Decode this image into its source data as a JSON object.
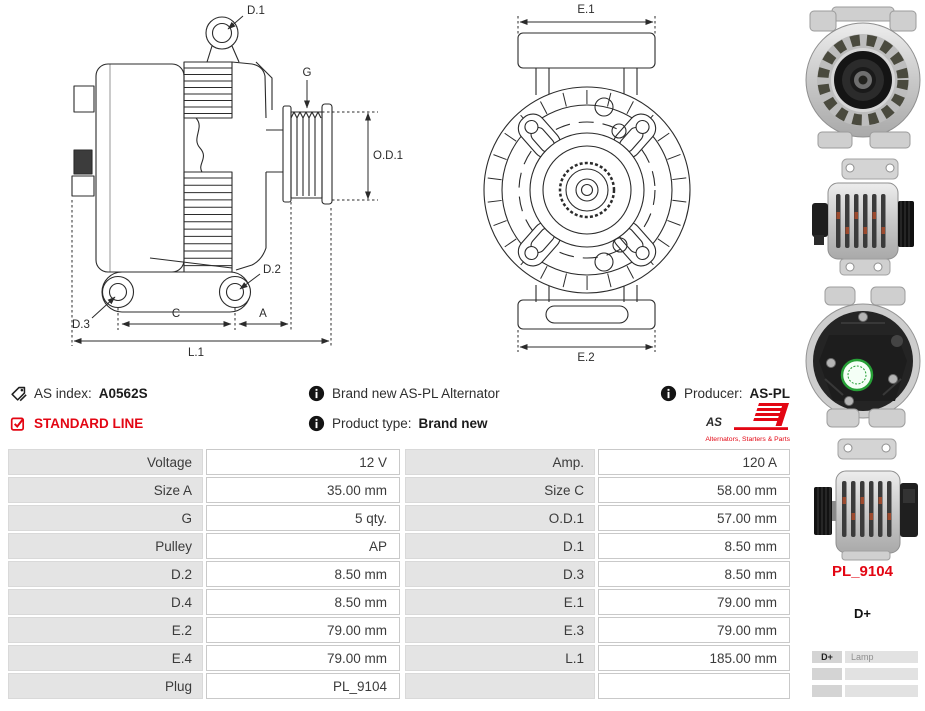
{
  "colors": {
    "accent_red": "#e30613",
    "label_cell_bg": "#e4e4e4",
    "line_color": "#2b2b2b"
  },
  "drawings": {
    "side_view": {
      "d1": "D.1",
      "g": "G",
      "od1": "O.D.1",
      "d2": "D.2",
      "d3": "D.3",
      "c": "C",
      "a": "A",
      "l1": "L.1"
    },
    "front_view": {
      "e1": "E.1",
      "e2": "E.2"
    }
  },
  "header": {
    "as_index_label": "AS index:",
    "as_index_value": "A0562S",
    "standard_line_label": "STANDARD LINE",
    "brand_new_text": "Brand new AS-PL Alternator",
    "product_type_label": "Product type:",
    "product_type_value": "Brand new",
    "producer_label": "Producer:",
    "producer_value": "AS-PL",
    "logo": {
      "text": "AS",
      "subtitle": "Alternators, Starters & Parts"
    }
  },
  "spec_table": {
    "left_rows": [
      {
        "label": "Voltage",
        "value": "12 V"
      },
      {
        "label": "Size A",
        "value": "35.00 mm"
      },
      {
        "label": "G",
        "value": "5 qty."
      },
      {
        "label": "Pulley",
        "value": "AP"
      },
      {
        "label": "D.2",
        "value": "8.50 mm"
      },
      {
        "label": "D.4",
        "value": "8.50 mm"
      },
      {
        "label": "E.2",
        "value": "79.00 mm"
      },
      {
        "label": "E.4",
        "value": "79.00 mm"
      },
      {
        "label": "Plug",
        "value": "PL_9104"
      }
    ],
    "right_rows": [
      {
        "label": "Amp.",
        "value": "120 A"
      },
      {
        "label": "Size C",
        "value": "58.00 mm"
      },
      {
        "label": "O.D.1",
        "value": "57.00 mm"
      },
      {
        "label": "D.1",
        "value": "8.50 mm"
      },
      {
        "label": "D.3",
        "value": "8.50 mm"
      },
      {
        "label": "E.1",
        "value": "79.00 mm"
      },
      {
        "label": "E.3",
        "value": "79.00 mm"
      },
      {
        "label": "L.1",
        "value": "185.00 mm"
      },
      {
        "label": "",
        "value": ""
      }
    ]
  },
  "sidebar": {
    "plug_code": "PL_9104",
    "terminal_label": "D+",
    "connection_table": [
      {
        "pin": "D+",
        "function": "Lamp"
      },
      {
        "pin": "",
        "function": ""
      },
      {
        "pin": "",
        "function": ""
      }
    ]
  }
}
